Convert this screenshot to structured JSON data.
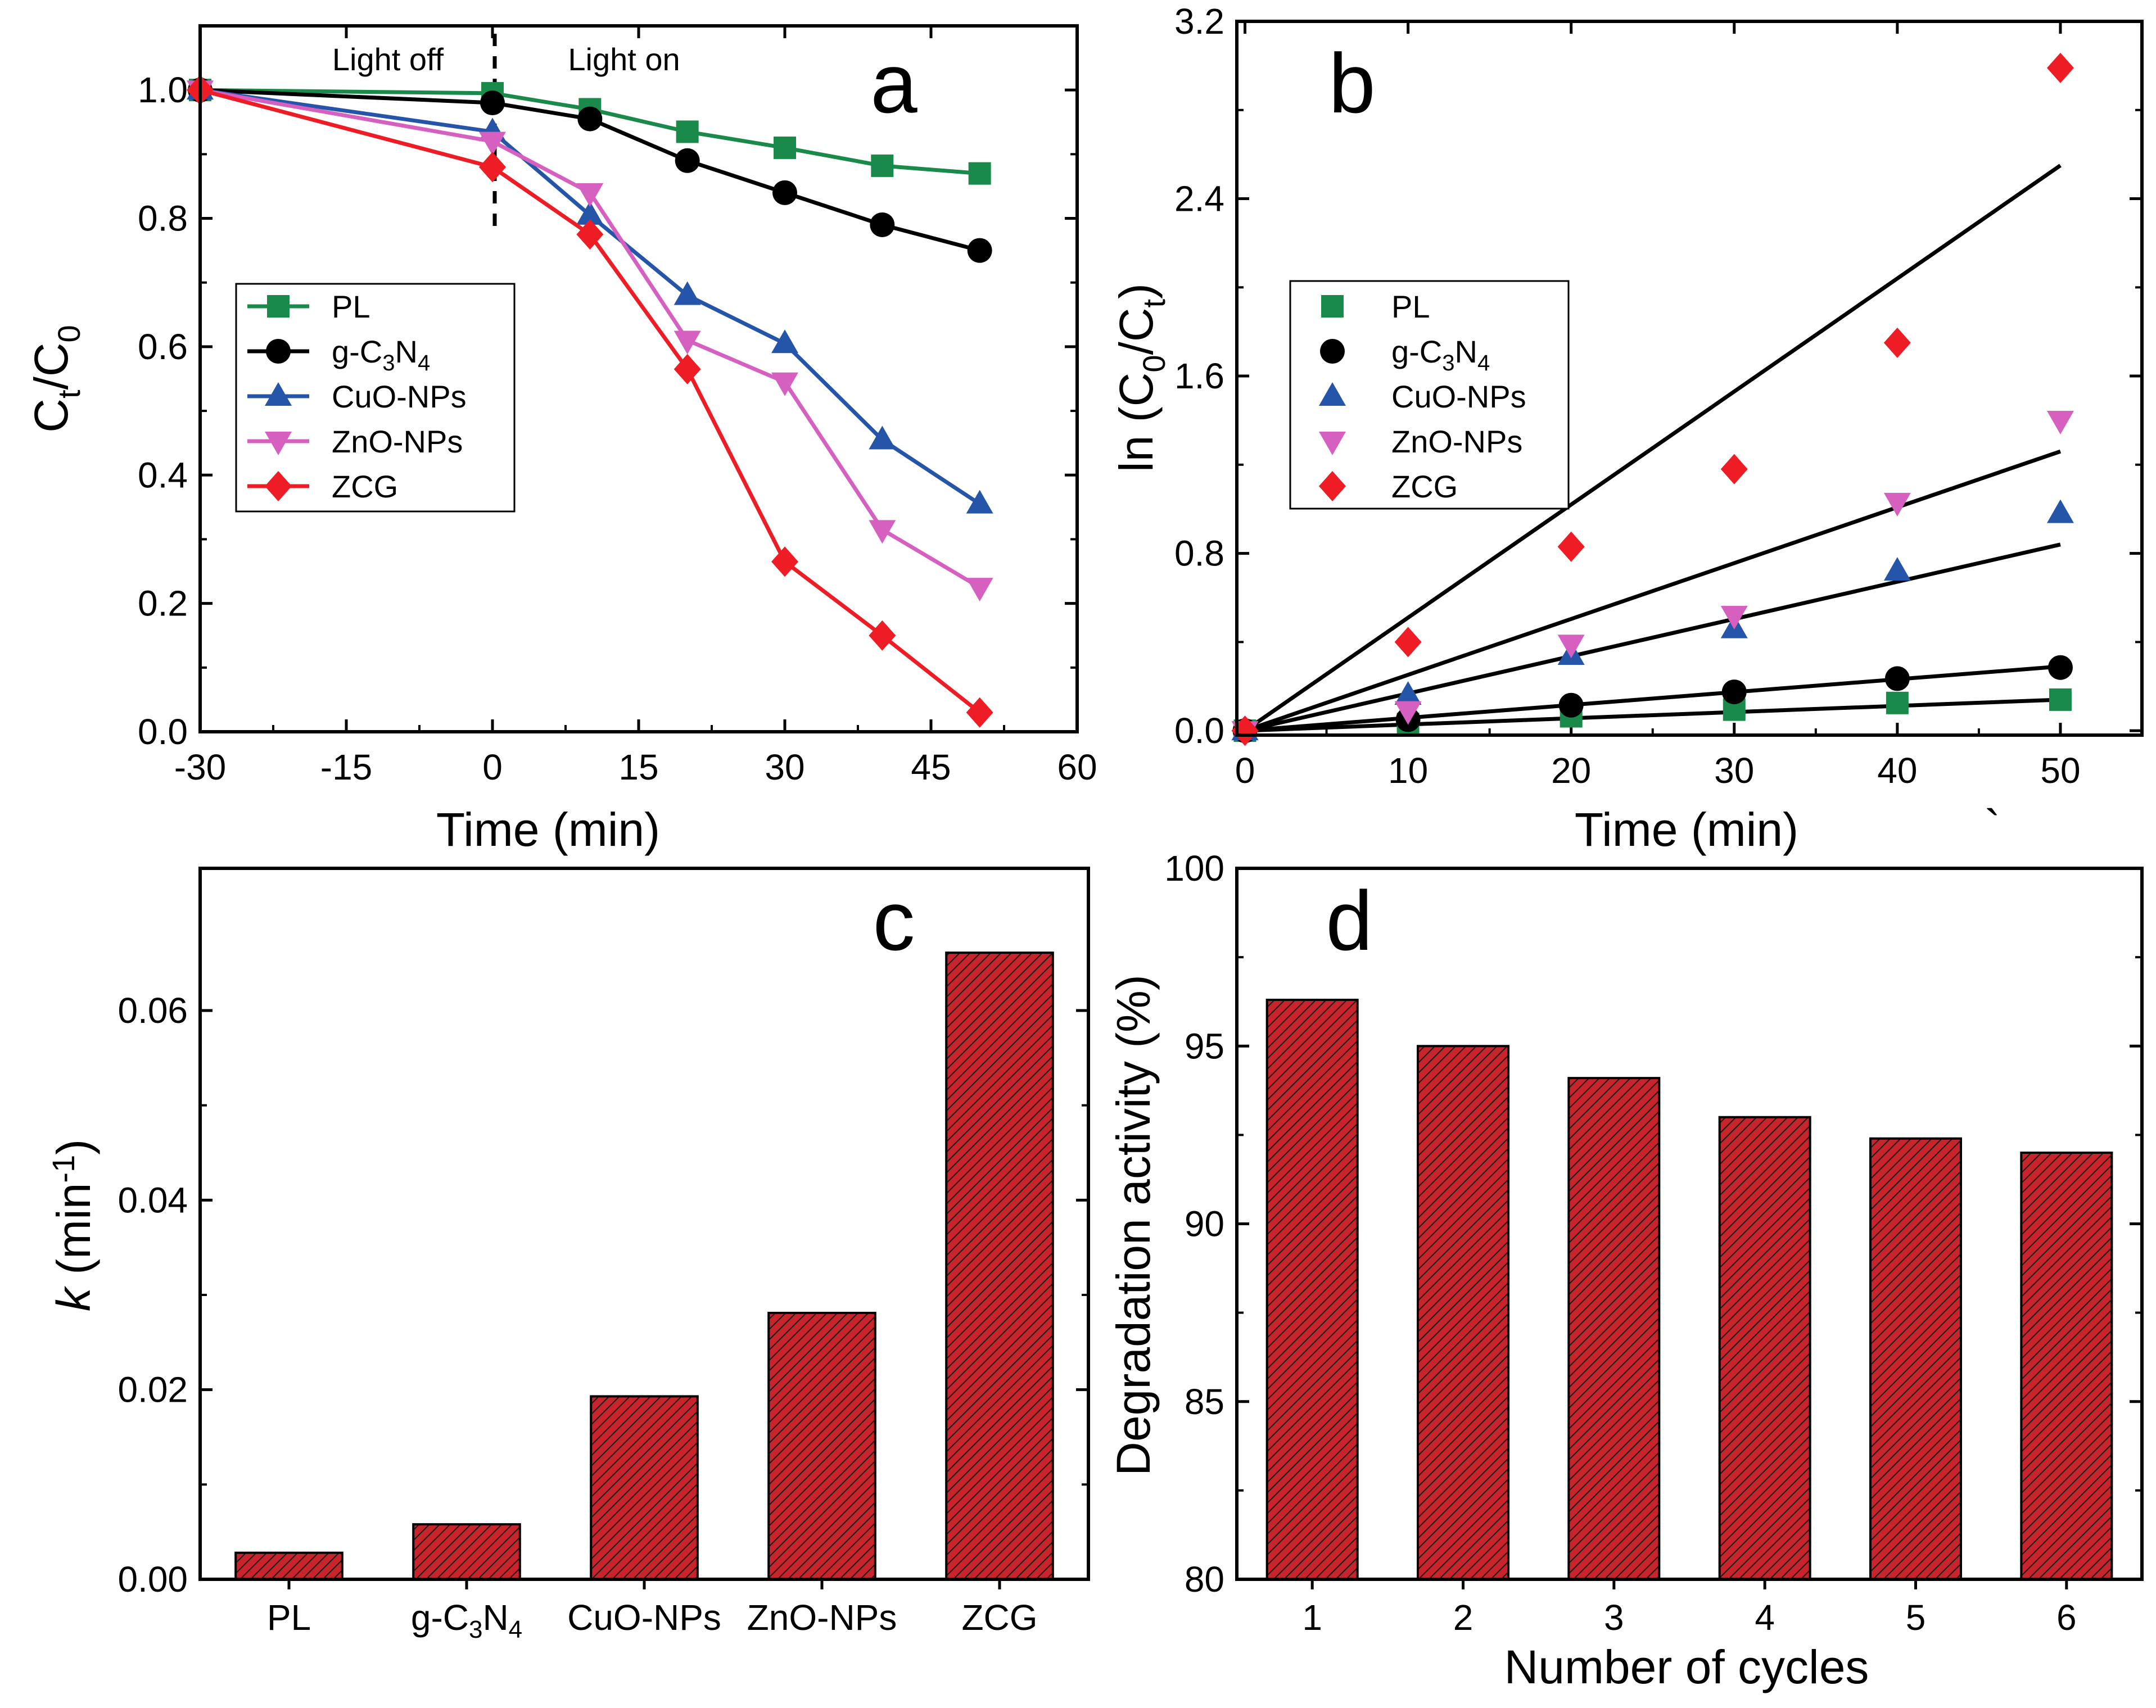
{
  "chart_data": [
    {
      "panel": "a",
      "type": "line",
      "xlabel": "Time (min)",
      "ylabel": "Ct/C0",
      "xlim": [
        -30,
        60
      ],
      "ylim": [
        0.0,
        1.1
      ],
      "x_ticks": [
        "-30",
        "-15",
        "0",
        "15",
        "30",
        "45",
        "60"
      ],
      "y_ticks": [
        "0.0",
        "0.2",
        "0.4",
        "0.6",
        "0.8",
        "1.0"
      ],
      "annotations": [
        "Light off",
        "Light on"
      ],
      "x": [
        -30,
        0,
        10,
        20,
        30,
        40,
        50
      ],
      "series": [
        {
          "name": "PL",
          "label_base": "PL",
          "color": "#1a8a4a",
          "marker": "square",
          "values": [
            1.0,
            0.995,
            0.97,
            0.935,
            0.91,
            0.882,
            0.87
          ]
        },
        {
          "name": "g-C3N4",
          "label_base": "g-C",
          "label_sub1": "3",
          "label_mid": "N",
          "label_sub2": "4",
          "color": "#000000",
          "marker": "circle",
          "values": [
            1.0,
            0.98,
            0.955,
            0.89,
            0.84,
            0.79,
            0.75
          ]
        },
        {
          "name": "CuO-NPs",
          "label_base": "CuO-NPs",
          "color": "#2455a8",
          "marker": "triangle-up",
          "values": [
            1.0,
            0.935,
            0.805,
            0.68,
            0.605,
            0.455,
            0.355
          ]
        },
        {
          "name": "ZnO-NPs",
          "label_base": "ZnO-NPs",
          "color": "#d660c0",
          "marker": "triangle-down",
          "values": [
            1.0,
            0.92,
            0.84,
            0.61,
            0.545,
            0.315,
            0.225
          ]
        },
        {
          "name": "ZCG",
          "label_base": "ZCG",
          "color": "#ee1c25",
          "marker": "diamond",
          "values": [
            1.0,
            0.88,
            0.775,
            0.565,
            0.265,
            0.15,
            0.03
          ]
        }
      ]
    },
    {
      "panel": "b",
      "type": "scatter",
      "xlabel": "Time (min)",
      "ylabel": "ln (C0/Ct)",
      "xlim": [
        -0.5,
        55
      ],
      "ylim": [
        -0.02,
        3.2
      ],
      "x_ticks": [
        "0",
        "10",
        "20",
        "30",
        "40",
        "50"
      ],
      "y_ticks": [
        "0.0",
        "0.8",
        "1.6",
        "2.4",
        "3.2"
      ],
      "x": [
        0,
        10,
        20,
        30,
        40,
        50
      ],
      "series": [
        {
          "name": "PL",
          "label_base": "PL",
          "color": "#1a8a4a",
          "marker": "square",
          "values": [
            0.0,
            0.03,
            0.065,
            0.095,
            0.125,
            0.14
          ],
          "fit_slope": 0.0028
        },
        {
          "name": "g-C3N4",
          "label_base": "g-C",
          "label_sub1": "3",
          "label_mid": "N",
          "label_sub2": "4",
          "color": "#000000",
          "marker": "circle",
          "values": [
            0.0,
            0.05,
            0.115,
            0.175,
            0.235,
            0.285
          ],
          "fit_slope": 0.0058
        },
        {
          "name": "CuO-NPs",
          "label_base": "CuO-NPs",
          "color": "#2455a8",
          "marker": "triangle-up",
          "values": [
            0.0,
            0.16,
            0.34,
            0.46,
            0.72,
            0.98
          ],
          "fit_slope": 0.0168
        },
        {
          "name": "ZnO-NPs",
          "label_base": "ZnO-NPs",
          "color": "#d660c0",
          "marker": "triangle-down",
          "values": [
            0.0,
            0.09,
            0.39,
            0.52,
            1.03,
            1.4
          ],
          "fit_slope": 0.0252
        },
        {
          "name": "ZCG",
          "label_base": "ZCG",
          "color": "#ee1c25",
          "marker": "diamond",
          "values": [
            0.0,
            0.4,
            0.83,
            1.18,
            1.75,
            2.99
          ],
          "fit_slope": 0.051
        }
      ]
    },
    {
      "panel": "c",
      "type": "bar",
      "xlabel": "",
      "ylabel": "k (min-1)",
      "ylim": [
        0,
        0.075
      ],
      "y_ticks": [
        "0.00",
        "0.02",
        "0.04",
        "0.06"
      ],
      "categories": [
        "PL",
        "g-C3N4",
        "CuO-NPs",
        "ZnO-NPs",
        "ZCG"
      ],
      "values": [
        0.0028,
        0.0058,
        0.0193,
        0.0281,
        0.0661
      ],
      "color": "#c8242c"
    },
    {
      "panel": "d",
      "type": "bar",
      "xlabel": "Number of cycles",
      "ylabel": "Degradation activity (%)",
      "ylim": [
        80,
        100
      ],
      "y_ticks": [
        "80",
        "85",
        "90",
        "95",
        "100"
      ],
      "categories": [
        "1",
        "2",
        "3",
        "4",
        "5",
        "6"
      ],
      "values": [
        96.3,
        95.0,
        94.1,
        93.0,
        92.4,
        92.0
      ],
      "color": "#c8242c"
    }
  ],
  "labels": {
    "a_letter": "a",
    "b_letter": "b",
    "c_letter": "c",
    "d_letter": "d",
    "light_off": "Light off",
    "light_on": "Light on",
    "a_xlabel": "Time (min)",
    "b_xlabel": "Time (min)",
    "d_xlabel": "Number of cycles",
    "d_ylabel": "Degradation activity (%)",
    "a_ylabel_C": "C",
    "a_ylabel_t": "t",
    "a_ylabel_slash": "/C",
    "a_ylabel_0": "0",
    "b_ylabel_ln": "ln (C",
    "b_ylabel_0": "0",
    "b_ylabel_mid": "/C",
    "b_ylabel_t": "t",
    "b_ylabel_end": ")",
    "c_ylabel_k": "k",
    "c_ylabel_unit": " (min",
    "c_ylabel_exp": "-1",
    "c_ylabel_end": ")",
    "c_cat_gcn_base": "g-C",
    "c_cat_gcn_sub1": "3",
    "c_cat_gcn_mid": "N",
    "c_cat_gcn_sub2": "4",
    "stray_mark": "`"
  }
}
